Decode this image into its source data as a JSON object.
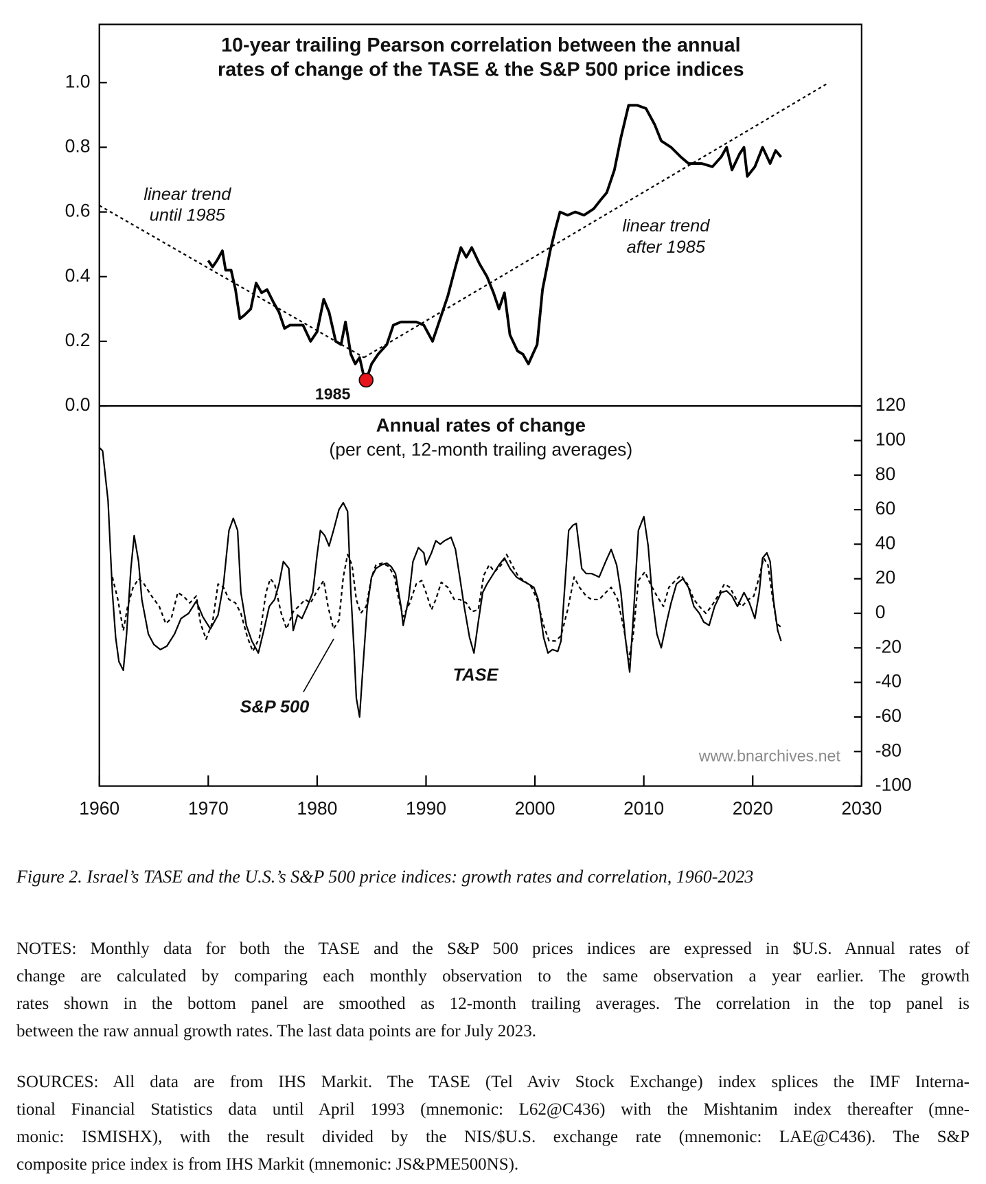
{
  "chart_data": [
    {
      "type": "line",
      "title": [
        "10-year trailing Pearson correlation between the annual",
        "rates of change of the TASE & the S&P 500 price indices"
      ],
      "y_axis": "left",
      "xlim": [
        1960,
        2030
      ],
      "ylim": [
        0,
        1.18
      ],
      "yticks": [
        {
          "value": 0,
          "label": "0.0"
        },
        0.2,
        0.4,
        0.6,
        0.8,
        {
          "value": 1,
          "label": "1.0"
        }
      ],
      "series": [
        {
          "color": "#000000",
          "x": [
            1970.0,
            1970.4,
            1970.8,
            1971.3,
            1971.6,
            1972.1,
            1972.5,
            1972.9,
            1973.3,
            1973.9,
            1974.4,
            1974.9,
            1975.4,
            1976.0,
            1976.5,
            1977.0,
            1977.5,
            1978.2,
            1978.7,
            1979.4,
            1980.0,
            1980.6,
            1981.1,
            1981.7,
            1982.2,
            1982.6,
            1983.1,
            1983.5,
            1983.9,
            1984.3,
            1984.5,
            1985.0,
            1985.6,
            1986.4,
            1987.0,
            1987.7,
            1988.4,
            1989.1,
            1989.8,
            1990.6,
            1991.3,
            1992.0,
            1992.7,
            1993.2,
            1993.7,
            1994.2,
            1994.9,
            1995.6,
            1996.2,
            1996.7,
            1997.2,
            1997.7,
            1998.4,
            1998.9,
            1999.4,
            1999.8,
            2000.2,
            2000.7,
            2001.4,
            2001.9,
            2002.3,
            2003.0,
            2003.7,
            2004.5,
            2005.4,
            2006.1,
            2006.6,
            2007.3,
            2007.9,
            2008.6,
            2009.4,
            2010.2,
            2011.0,
            2011.6,
            2012.5,
            2013.4,
            2014.1,
            2015.3,
            2016.3,
            2017.1,
            2017.6,
            2018.1,
            2018.8,
            2019.2,
            2019.5,
            2020.2,
            2020.9,
            2021.6,
            2022.1,
            2022.6
          ],
          "values": [
            0.45,
            0.43,
            0.45,
            0.48,
            0.42,
            0.42,
            0.36,
            0.27,
            0.28,
            0.3,
            0.38,
            0.35,
            0.36,
            0.32,
            0.29,
            0.24,
            0.25,
            0.25,
            0.25,
            0.2,
            0.23,
            0.33,
            0.29,
            0.2,
            0.19,
            0.26,
            0.16,
            0.13,
            0.15,
            0.09,
            0.08,
            0.13,
            0.16,
            0.19,
            0.25,
            0.26,
            0.26,
            0.26,
            0.25,
            0.2,
            0.27,
            0.34,
            0.43,
            0.49,
            0.46,
            0.49,
            0.44,
            0.4,
            0.35,
            0.3,
            0.35,
            0.22,
            0.17,
            0.16,
            0.13,
            0.16,
            0.19,
            0.36,
            0.48,
            0.55,
            0.6,
            0.59,
            0.6,
            0.59,
            0.61,
            0.64,
            0.66,
            0.73,
            0.83,
            0.93,
            0.93,
            0.92,
            0.87,
            0.82,
            0.8,
            0.77,
            0.75,
            0.75,
            0.74,
            0.77,
            0.8,
            0.73,
            0.78,
            0.8,
            0.71,
            0.74,
            0.8,
            0.75,
            0.79,
            0.77
          ]
        }
      ],
      "trends": [
        {
          "x": [
            1960,
            1984.3
          ],
          "values": [
            0.62,
            0.15
          ]
        },
        {
          "x": [
            1984.3,
            2027
          ],
          "values": [
            0.15,
            1.0
          ]
        }
      ],
      "annotations": [
        [
          "linear trend",
          "until 1985"
        ],
        [
          "linear trend",
          "after 1985"
        ]
      ],
      "highlight": {
        "label": "1985",
        "x": 1984.5,
        "value": 0.08,
        "color": "#e8141b"
      }
    },
    {
      "type": "line",
      "title": "Annual rates of change",
      "subtitle": "(per cent, 12-month trailing averages)",
      "y_axis": "right",
      "xlim": [
        1960,
        2030
      ],
      "xticks": [
        1960,
        1970,
        1980,
        1990,
        2000,
        2010,
        2020,
        2030
      ],
      "ylim": [
        -100,
        120
      ],
      "yticks": [
        -100,
        -80,
        -60,
        -40,
        -20,
        0,
        20,
        40,
        60,
        80,
        100,
        120
      ],
      "series": [
        {
          "name": "TASE",
          "color": "#000000",
          "dash": false,
          "x": [
            1960.0,
            1960.3,
            1960.8,
            1961.2,
            1961.5,
            1961.8,
            1962.2,
            1962.5,
            1962.9,
            1963.2,
            1963.6,
            1963.9,
            1964.5,
            1965.0,
            1965.6,
            1966.2,
            1966.9,
            1967.5,
            1968.2,
            1968.9,
            1969.5,
            1970.2,
            1970.9,
            1971.4,
            1971.9,
            1972.3,
            1972.7,
            1973.0,
            1973.5,
            1974.0,
            1974.6,
            1975.1,
            1975.6,
            1976.1,
            1976.5,
            1976.9,
            1977.4,
            1977.8,
            1978.2,
            1978.6,
            1979.1,
            1979.6,
            1980.0,
            1980.3,
            1980.7,
            1981.1,
            1981.5,
            1982.0,
            1982.4,
            1982.8,
            1983.1,
            1983.4,
            1983.6,
            1983.9,
            1984.2,
            1984.6,
            1985.0,
            1985.4,
            1985.9,
            1986.4,
            1986.8,
            1987.2,
            1987.7,
            1987.9,
            1988.4,
            1988.8,
            1989.3,
            1989.8,
            1990.0,
            1990.5,
            1990.9,
            1991.3,
            1991.7,
            1992.3,
            1992.7,
            1993.1,
            1993.5,
            1994.0,
            1994.4,
            1994.8,
            1995.2,
            1995.6,
            1996.2,
            1996.7,
            1997.2,
            1997.7,
            1998.3,
            1998.8,
            1999.4,
            1999.9,
            2000.3,
            2000.8,
            2001.2,
            2001.6,
            2002.1,
            2002.4,
            2002.8,
            2003.1,
            2003.5,
            2003.8,
            2004.3,
            2004.7,
            2005.2,
            2005.9,
            2006.5,
            2007.0,
            2007.5,
            2007.9,
            2008.3,
            2008.7,
            2009.1,
            2009.5,
            2010.0,
            2010.4,
            2010.8,
            2011.2,
            2011.6,
            2012.1,
            2012.5,
            2013.0,
            2013.6,
            2014.1,
            2014.6,
            2015.1,
            2015.5,
            2016.0,
            2016.5,
            2017.1,
            2017.6,
            2018.1,
            2018.6,
            2019.2,
            2019.7,
            2020.2,
            2020.6,
            2020.9,
            2021.3,
            2021.6,
            2021.9,
            2022.3,
            2022.6
          ],
          "values": [
            96,
            94,
            65,
            12,
            -14,
            -28,
            -33,
            -12,
            26,
            45,
            30,
            8,
            -12,
            -18,
            -21,
            -19,
            -12,
            -3,
            0,
            7,
            -2,
            -9,
            -1,
            17,
            48,
            55,
            48,
            12,
            -7,
            -16,
            -23,
            -10,
            4,
            8,
            17,
            30,
            26,
            -10,
            -1,
            -3,
            4,
            12,
            34,
            48,
            45,
            39,
            48,
            60,
            64,
            59,
            12,
            -23,
            -49,
            -60,
            -32,
            4,
            21,
            26,
            28,
            29,
            27,
            23,
            4,
            -7,
            8,
            30,
            38,
            35,
            28,
            35,
            42,
            40,
            42,
            44,
            37,
            21,
            4,
            -14,
            -23,
            -5,
            12,
            17,
            23,
            28,
            32,
            26,
            21,
            19,
            17,
            15,
            8,
            -14,
            -23,
            -21,
            -22,
            -16,
            21,
            48,
            51,
            52,
            26,
            23,
            23,
            21,
            30,
            37,
            28,
            12,
            -14,
            -34,
            4,
            48,
            56,
            39,
            8,
            -12,
            -20,
            -5,
            6,
            17,
            20,
            15,
            4,
            0,
            -5,
            -7,
            4,
            12,
            13,
            10,
            4,
            12,
            6,
            -3,
            12,
            32,
            35,
            30,
            8,
            -10,
            -16
          ]
        },
        {
          "name": "S&P 500",
          "color": "#000000",
          "dash": true,
          "x": [
            1961.2,
            1961.7,
            1962.2,
            1962.6,
            1963.1,
            1963.6,
            1964.1,
            1964.8,
            1965.5,
            1966.1,
            1966.6,
            1967.2,
            1967.7,
            1968.3,
            1968.9,
            1969.3,
            1969.8,
            1970.4,
            1970.9,
            1971.4,
            1971.9,
            1972.5,
            1973.0,
            1973.6,
            1974.1,
            1974.7,
            1975.3,
            1975.7,
            1976.1,
            1976.7,
            1977.2,
            1977.8,
            1978.3,
            1978.9,
            1979.4,
            1980.0,
            1980.6,
            1981.0,
            1981.5,
            1982.0,
            1982.4,
            1982.8,
            1983.2,
            1983.6,
            1984.0,
            1984.5,
            1985.0,
            1985.4,
            1986.0,
            1986.6,
            1987.1,
            1987.5,
            1987.9,
            1988.5,
            1989.1,
            1989.6,
            1990.0,
            1990.5,
            1990.9,
            1991.4,
            1992.0,
            1992.6,
            1993.1,
            1993.7,
            1994.2,
            1994.8,
            1995.3,
            1995.8,
            1996.3,
            1996.9,
            1997.4,
            1997.9,
            1998.5,
            1999.0,
            1999.7,
            2000.2,
            2000.8,
            2001.3,
            2001.9,
            2002.4,
            2003.0,
            2003.6,
            2004.1,
            2004.7,
            2005.2,
            2005.9,
            2006.5,
            2007.0,
            2007.6,
            2008.2,
            2008.6,
            2009.0,
            2009.5,
            2010.1,
            2010.6,
            2011.2,
            2011.8,
            2012.3,
            2012.9,
            2013.4,
            2014.0,
            2014.6,
            2015.1,
            2015.7,
            2016.2,
            2016.8,
            2017.4,
            2017.9,
            2018.5,
            2019.0,
            2019.6,
            2020.1,
            2020.6,
            2021.0,
            2021.4,
            2021.8,
            2022.2,
            2022.6
          ],
          "values": [
            21,
            8,
            -10,
            4,
            15,
            20,
            17,
            10,
            4,
            -6,
            -3,
            12,
            10,
            6,
            10,
            -6,
            -15,
            -5,
            17,
            15,
            8,
            6,
            0,
            -14,
            -22,
            -14,
            12,
            20,
            17,
            0,
            -9,
            1,
            4,
            8,
            6,
            13,
            19,
            4,
            -9,
            -4,
            21,
            34,
            28,
            8,
            0,
            4,
            21,
            28,
            29,
            27,
            21,
            8,
            -2,
            6,
            17,
            19,
            12,
            2,
            8,
            18,
            15,
            8,
            8,
            6,
            1,
            2,
            22,
            28,
            24,
            28,
            34,
            28,
            21,
            19,
            15,
            8,
            -7,
            -16,
            -16,
            -13,
            2,
            21,
            15,
            10,
            8,
            8,
            12,
            15,
            8,
            -10,
            -27,
            -14,
            19,
            24,
            17,
            10,
            4,
            15,
            19,
            22,
            17,
            8,
            4,
            0,
            4,
            10,
            17,
            15,
            8,
            4,
            8,
            10,
            21,
            32,
            28,
            10,
            -6,
            -8
          ]
        }
      ],
      "source_url": "www.bnarchives.net"
    }
  ],
  "caption": "Figure 2. Israel’s TASE and the U.S.’s S&P 500 price indices: growth rates and correlation, 1960-2023",
  "notes": [
    "NOTES: Monthly data for both the TASE and the S&P 500 prices indices are expressed in $U.S. Annual rates of",
    "change are calculated by comparing each monthly observation to the same observation a year earlier. The growth",
    "rates shown in the bottom panel are smoothed as 12-month trailing averages. The correlation in the top panel is",
    "between the raw annual growth rates. The last data points are for July 2023."
  ],
  "sources": [
    "SOURCES: All data are from IHS Markit. The TASE (Tel Aviv Stock Exchange) index splices the IMF Interna-",
    "tional Financial Statistics data until April 1993 (mnemonic: L62@C436) with the Mishtanim index thereafter (mne-",
    "monic: ISMISHX), with the result divided by the NIS/$U.S. exchange rate (mnemonic: LAE@C436). The S&P",
    "composite price index is from IHS Markit (mnemonic: JS&PME500NS)."
  ]
}
